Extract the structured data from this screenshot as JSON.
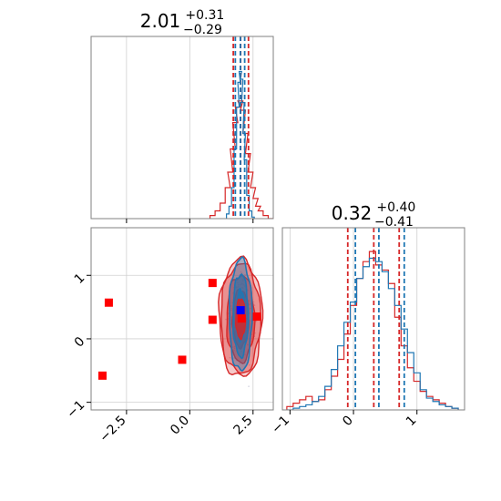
{
  "colors": {
    "red": "#d62728",
    "blue": "#1f77b4",
    "marker_red": "#ff0000",
    "marker_blue": "#0000ff",
    "grid": "#d0d0d0",
    "frame": "#808080"
  },
  "chart_data": [
    {
      "panel": "top-left",
      "type": "line",
      "subtype": "histogram",
      "title": {
        "median": "2.01",
        "plus": "+0.31",
        "minus": "−0.29"
      },
      "xlim": [
        -3.9,
        3.3
      ],
      "grid": true,
      "series": [
        {
          "color": "red",
          "x": [
            0.9,
            1.1,
            1.3,
            1.5,
            1.6,
            1.7,
            1.8,
            1.9,
            2.0,
            2.1,
            2.2,
            2.3,
            2.4,
            2.5,
            2.6,
            2.7,
            2.8,
            3.0,
            3.2
          ],
          "values": [
            0.02,
            0.05,
            0.1,
            0.2,
            0.3,
            0.45,
            0.62,
            0.72,
            0.76,
            0.7,
            0.55,
            0.42,
            0.3,
            0.2,
            0.13,
            0.08,
            0.05,
            0.02,
            0.0
          ],
          "quantiles": [
            1.72,
            2.01,
            2.32
          ]
        },
        {
          "color": "blue",
          "x": [
            1.5,
            1.6,
            1.7,
            1.8,
            1.9,
            1.95,
            2.0,
            2.05,
            2.1,
            2.15,
            2.2,
            2.3,
            2.4,
            2.5
          ],
          "values": [
            0.03,
            0.08,
            0.2,
            0.45,
            0.72,
            0.88,
            0.95,
            0.9,
            0.75,
            0.55,
            0.38,
            0.15,
            0.05,
            0.01
          ],
          "quantiles": [
            1.8,
            2.0,
            2.17
          ]
        }
      ]
    },
    {
      "panel": "bottom-left",
      "type": "scatter",
      "subtype": "2d-contour",
      "xlim": [
        -3.9,
        3.3
      ],
      "ylim": [
        -1.12,
        1.75
      ],
      "xticks": [
        "−2.5",
        "0.0",
        "2.5"
      ],
      "xtick_values": [
        -2.5,
        0.0,
        2.5
      ],
      "yticks": [
        "−1",
        "0",
        "1"
      ],
      "ytick_values": [
        -1,
        0,
        1
      ],
      "grid": true,
      "red_markers": [
        {
          "x": -3.2,
          "y": 0.57
        },
        {
          "x": -3.45,
          "y": -0.58
        },
        {
          "x": -0.3,
          "y": -0.33
        },
        {
          "x": 0.9,
          "y": 0.88
        },
        {
          "x": 0.9,
          "y": 0.3
        },
        {
          "x": 2.05,
          "y": 0.32
        },
        {
          "x": 2.65,
          "y": 0.35
        }
      ],
      "blue_marker": {
        "x": 2.01,
        "y": 0.45
      },
      "contour_center": {
        "x": 2.01,
        "y": 0.32
      },
      "contour_levels_red": [
        {
          "sx": 0.85,
          "sy": 0.93
        },
        {
          "sx": 0.78,
          "sy": 0.86
        },
        {
          "sx": 0.55,
          "sy": 0.68
        },
        {
          "sx": 0.32,
          "sy": 0.45
        }
      ],
      "contour_levels_blue": [
        {
          "sx": 0.45,
          "sy": 0.88
        },
        {
          "sx": 0.3,
          "sy": 0.65
        },
        {
          "sx": 0.16,
          "sy": 0.4
        }
      ]
    },
    {
      "panel": "bottom-right",
      "type": "line",
      "subtype": "histogram",
      "title": {
        "median": "0.32",
        "plus": "+0.40",
        "minus": "−0.41"
      },
      "xlim": [
        -1.12,
        1.75
      ],
      "xticks": [
        "−1",
        "0",
        "1"
      ],
      "xtick_values": [
        -1,
        0,
        1
      ],
      "grid": true,
      "series": [
        {
          "color": "red",
          "x": [
            -1.0,
            -0.9,
            -0.8,
            -0.7,
            -0.6,
            -0.5,
            -0.4,
            -0.3,
            -0.2,
            -0.1,
            0.0,
            0.1,
            0.2,
            0.3,
            0.4,
            0.5,
            0.6,
            0.7,
            0.8,
            0.9,
            1.0,
            1.1,
            1.2,
            1.3,
            1.4,
            1.5,
            1.6
          ],
          "values": [
            0.02,
            0.04,
            0.06,
            0.08,
            0.05,
            0.06,
            0.12,
            0.2,
            0.3,
            0.45,
            0.62,
            0.78,
            0.88,
            0.94,
            0.86,
            0.83,
            0.75,
            0.55,
            0.38,
            0.25,
            0.17,
            0.11,
            0.08,
            0.06,
            0.04,
            0.02,
            0.01
          ],
          "quantiles": [
            -0.09,
            0.32,
            0.72
          ]
        },
        {
          "color": "blue",
          "x": [
            -1.0,
            -0.9,
            -0.8,
            -0.7,
            -0.6,
            -0.5,
            -0.4,
            -0.3,
            -0.2,
            -0.1,
            0.0,
            0.1,
            0.2,
            0.3,
            0.4,
            0.5,
            0.6,
            0.7,
            0.8,
            0.9,
            1.0,
            1.1,
            1.2,
            1.3,
            1.4,
            1.5,
            1.6
          ],
          "values": [
            0.0,
            0.01,
            0.02,
            0.03,
            0.05,
            0.08,
            0.14,
            0.24,
            0.38,
            0.52,
            0.64,
            0.78,
            0.85,
            0.9,
            0.88,
            0.82,
            0.72,
            0.62,
            0.48,
            0.34,
            0.22,
            0.12,
            0.07,
            0.05,
            0.03,
            0.02,
            0.01
          ],
          "quantiles": [
            0.03,
            0.4,
            0.8
          ]
        }
      ]
    }
  ]
}
